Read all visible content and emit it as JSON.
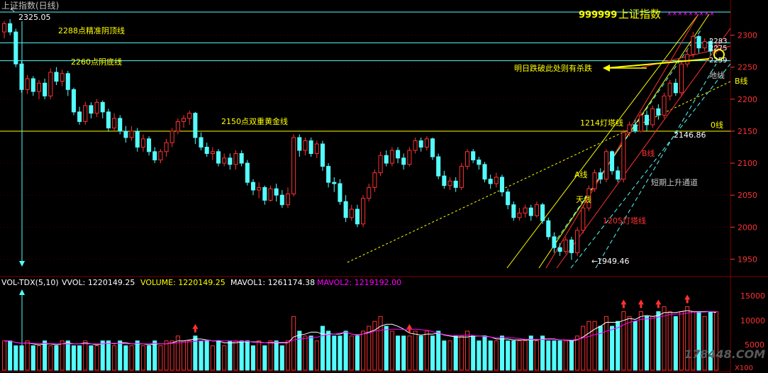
{
  "window_title": "上证指数(日线)",
  "top_price_label": "2325.05",
  "index_name": {
    "code": "999999",
    "name": "上证指数"
  },
  "y_axis_ticks": [
    "2300",
    "2250",
    "2200",
    "2150",
    "2100",
    "2050",
    "2000",
    "1950"
  ],
  "right_price_labels": [
    "2283",
    "2275",
    "2259"
  ],
  "annotations": {
    "line_2288": "2288点精准阴顶线",
    "line_2260": "2260点阴底线",
    "line_2150": "2150点双重黄金线",
    "lighthouse_1214": "1214灯塔线",
    "lighthouse_1205": "1205灯塔线",
    "warning": "明日跌破此处则有杀跌",
    "ground_line": "地线",
    "sky_line": "天线",
    "a_line": "A线",
    "b_line": "B线",
    "zero_line": "0线",
    "b_line_red": "B线",
    "channel": "短期上升通道",
    "low_label": "2146.86",
    "bottom_label": "1949.46"
  },
  "volume_panel": {
    "label_name": "VOL-TDX(5,10)",
    "vvol_label": "VVOL: 1220149.25",
    "volume_label": "VOLUME: 1220149.25",
    "mavol1_label": "MAVOL1: 1261174.38",
    "mavol2_label": "MAVOL2: 1219192.00",
    "y_ticks": [
      "15000",
      "10000",
      "5000"
    ],
    "unit": "X100"
  },
  "watermark": "178448.COM",
  "colors": {
    "up": "#ff3232",
    "down": "#54fcfc",
    "yellow": "#ffff00",
    "grid": "#800000",
    "mavol1": "#ffffff",
    "mavol2": "#ff00ff",
    "cyan_line": "#54fcfc"
  },
  "chart_data": {
    "type": "candlestick",
    "ylim": [
      1925,
      2335
    ],
    "reference_levels": [
      2288,
      2260,
      2150
    ],
    "candles": [
      [
        2305,
        2318,
        2295,
        2322
      ],
      [
        2318,
        2305,
        2300,
        2325
      ],
      [
        2305,
        2255,
        2250,
        2310
      ],
      [
        2255,
        2215,
        2210,
        2260
      ],
      [
        2215,
        2232,
        2208,
        2238
      ],
      [
        2232,
        2212,
        2205,
        2236
      ],
      [
        2212,
        2225,
        2200,
        2230
      ],
      [
        2225,
        2205,
        2200,
        2232
      ],
      [
        2205,
        2242,
        2200,
        2248
      ],
      [
        2242,
        2228,
        2222,
        2250
      ],
      [
        2228,
        2240,
        2220,
        2246
      ],
      [
        2240,
        2215,
        2205,
        2244
      ],
      [
        2215,
        2180,
        2175,
        2218
      ],
      [
        2180,
        2165,
        2160,
        2188
      ],
      [
        2165,
        2190,
        2160,
        2196
      ],
      [
        2190,
        2178,
        2170,
        2195
      ],
      [
        2178,
        2195,
        2172,
        2200
      ],
      [
        2195,
        2180,
        2170,
        2198
      ],
      [
        2180,
        2155,
        2150,
        2185
      ],
      [
        2155,
        2170,
        2150,
        2178
      ],
      [
        2170,
        2150,
        2145,
        2175
      ],
      [
        2150,
        2140,
        2132,
        2158
      ],
      [
        2140,
        2150,
        2135,
        2158
      ],
      [
        2150,
        2125,
        2118,
        2155
      ],
      [
        2125,
        2138,
        2118,
        2145
      ],
      [
        2138,
        2118,
        2112,
        2142
      ],
      [
        2118,
        2105,
        2100,
        2125
      ],
      [
        2105,
        2118,
        2100,
        2122
      ],
      [
        2118,
        2132,
        2110,
        2138
      ],
      [
        2132,
        2150,
        2125,
        2155
      ],
      [
        2150,
        2165,
        2145,
        2170
      ],
      [
        2165,
        2170,
        2155,
        2175
      ],
      [
        2170,
        2178,
        2160,
        2182
      ],
      [
        2178,
        2140,
        2130,
        2180
      ],
      [
        2140,
        2125,
        2120,
        2148
      ],
      [
        2125,
        2115,
        2110,
        2132
      ],
      [
        2115,
        2118,
        2105,
        2125
      ],
      [
        2118,
        2100,
        2095,
        2122
      ],
      [
        2100,
        2108,
        2095,
        2115
      ],
      [
        2108,
        2098,
        2090,
        2115
      ],
      [
        2098,
        2115,
        2090,
        2120
      ],
      [
        2115,
        2100,
        2095,
        2120
      ],
      [
        2100,
        2070,
        2065,
        2105
      ],
      [
        2070,
        2058,
        2050,
        2075
      ],
      [
        2058,
        2062,
        2045,
        2070
      ],
      [
        2062,
        2042,
        2035,
        2065
      ],
      [
        2042,
        2060,
        2040,
        2065
      ],
      [
        2060,
        2050,
        2040,
        2068
      ],
      [
        2050,
        2035,
        2030,
        2058
      ],
      [
        2035,
        2052,
        2030,
        2062
      ],
      [
        2052,
        2140,
        2048,
        2145
      ],
      [
        2140,
        2120,
        2110,
        2145
      ],
      [
        2120,
        2135,
        2112,
        2140
      ],
      [
        2135,
        2115,
        2110,
        2140
      ],
      [
        2115,
        2130,
        2108,
        2135
      ],
      [
        2130,
        2095,
        2088,
        2135
      ],
      [
        2095,
        2070,
        2062,
        2100
      ],
      [
        2070,
        2068,
        2055,
        2078
      ],
      [
        2068,
        2040,
        2035,
        2075
      ],
      [
        2040,
        2015,
        2008,
        2050
      ],
      [
        2015,
        2028,
        2010,
        2035
      ],
      [
        2028,
        2005,
        2000,
        2035
      ],
      [
        2005,
        2045,
        2000,
        2050
      ],
      [
        2045,
        2062,
        2040,
        2068
      ],
      [
        2062,
        2085,
        2055,
        2090
      ],
      [
        2085,
        2112,
        2080,
        2118
      ],
      [
        2112,
        2100,
        2095,
        2120
      ],
      [
        2100,
        2120,
        2095,
        2125
      ],
      [
        2120,
        2108,
        2100,
        2125
      ],
      [
        2108,
        2098,
        2090,
        2115
      ],
      [
        2098,
        2120,
        2095,
        2125
      ],
      [
        2120,
        2135,
        2115,
        2140
      ],
      [
        2135,
        2125,
        2118,
        2140
      ],
      [
        2125,
        2138,
        2120,
        2142
      ],
      [
        2138,
        2110,
        2105,
        2140
      ],
      [
        2110,
        2080,
        2075,
        2115
      ],
      [
        2080,
        2065,
        2060,
        2088
      ],
      [
        2065,
        2072,
        2058,
        2078
      ],
      [
        2072,
        2062,
        2055,
        2078
      ],
      [
        2062,
        2095,
        2058,
        2100
      ],
      [
        2095,
        2118,
        2090,
        2122
      ],
      [
        2118,
        2105,
        2100,
        2122
      ],
      [
        2105,
        2098,
        2090,
        2110
      ],
      [
        2098,
        2075,
        2070,
        2102
      ],
      [
        2075,
        2068,
        2060,
        2082
      ],
      [
        2068,
        2078,
        2062,
        2085
      ],
      [
        2078,
        2055,
        2048,
        2082
      ],
      [
        2055,
        2035,
        2028,
        2060
      ],
      [
        2035,
        2015,
        2010,
        2040
      ],
      [
        2015,
        2022,
        2010,
        2030
      ],
      [
        2022,
        2030,
        2015,
        2035
      ],
      [
        2030,
        2018,
        2010,
        2035
      ],
      [
        2018,
        2035,
        2015,
        2040
      ],
      [
        2035,
        2010,
        2005,
        2038
      ],
      [
        2010,
        1985,
        1980,
        2015
      ],
      [
        1985,
        1968,
        1960,
        1992
      ],
      [
        1968,
        1962,
        1955,
        1975
      ],
      [
        1962,
        1980,
        1958,
        1985
      ],
      [
        1980,
        1960,
        1949,
        1985
      ],
      [
        1960,
        1995,
        1955,
        2000
      ],
      [
        1995,
        2030,
        1990,
        2035
      ],
      [
        2030,
        2060,
        2025,
        2065
      ],
      [
        2060,
        2085,
        2055,
        2090
      ],
      [
        2085,
        2075,
        2068,
        2092
      ],
      [
        2075,
        2118,
        2070,
        2122
      ],
      [
        2118,
        2088,
        2082,
        2120
      ],
      [
        2088,
        2075,
        2070,
        2095
      ],
      [
        2075,
        2148,
        2070,
        2152
      ],
      [
        2148,
        2160,
        2142,
        2165
      ],
      [
        2160,
        2150,
        2146.86,
        2168
      ],
      [
        2150,
        2175,
        2148,
        2180
      ],
      [
        2175,
        2160,
        2150,
        2182
      ],
      [
        2160,
        2185,
        2155,
        2190
      ],
      [
        2185,
        2175,
        2168,
        2192
      ],
      [
        2175,
        2205,
        2170,
        2210
      ],
      [
        2205,
        2225,
        2198,
        2230
      ],
      [
        2225,
        2210,
        2205,
        2232
      ],
      [
        2210,
        2255,
        2205,
        2260
      ],
      [
        2255,
        2270,
        2250,
        2278
      ],
      [
        2270,
        2298,
        2265,
        2305
      ],
      [
        2298,
        2280,
        2272,
        2300
      ],
      [
        2280,
        2290,
        2275,
        2295
      ],
      [
        2290,
        2275,
        2268,
        2295
      ],
      [
        2275,
        2283,
        2270,
        2290
      ]
    ],
    "volume": [
      6,
      6,
      5,
      5,
      6,
      5,
      5,
      6,
      5,
      5,
      6,
      6,
      5,
      5,
      6,
      5,
      5,
      6,
      6,
      5,
      6,
      5,
      5,
      6,
      5,
      5,
      6,
      5,
      6,
      6,
      7,
      6,
      6,
      7,
      6,
      6,
      5,
      6,
      5,
      6,
      6,
      6,
      6,
      5,
      6,
      5,
      6,
      6,
      5,
      6,
      11,
      8,
      7,
      7,
      6,
      9,
      8,
      7,
      7,
      8,
      7,
      7,
      8,
      9,
      10,
      11,
      9,
      8,
      7,
      7,
      7,
      8,
      7,
      8,
      7,
      8,
      6,
      6,
      7,
      7,
      8,
      7,
      6,
      7,
      6,
      6,
      7,
      6,
      6,
      6,
      6,
      7,
      6,
      7,
      6,
      6,
      6,
      6,
      6,
      7,
      9,
      10,
      10,
      9,
      11,
      9,
      10,
      12,
      11,
      10,
      12,
      11,
      11,
      12,
      13,
      12,
      11,
      12,
      13,
      12,
      12,
      11,
      12,
      12
    ],
    "mavol1_level": "1261174.38",
    "mavol2_level": "1219192.00"
  }
}
